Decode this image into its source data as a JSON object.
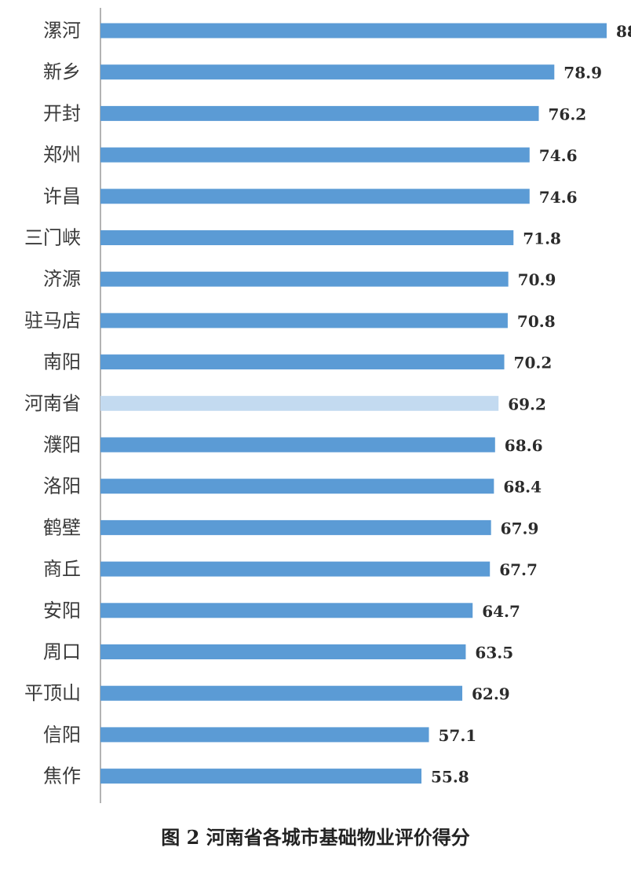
{
  "chart_data": {
    "type": "bar",
    "orientation": "horizontal",
    "categories": [
      "漯河",
      "新乡",
      "开封",
      "郑州",
      "许昌",
      "三门峡",
      "济源",
      "驻马店",
      "南阳",
      "河南省",
      "濮阳",
      "洛阳",
      "鹤壁",
      "商丘",
      "安阳",
      "周口",
      "平顶山",
      "信阳",
      "焦作"
    ],
    "values": [
      88,
      78.9,
      76.2,
      74.6,
      74.6,
      71.8,
      70.9,
      70.8,
      70.2,
      69.2,
      68.6,
      68.4,
      67.9,
      67.7,
      64.7,
      63.5,
      62.9,
      57.1,
      55.8
    ],
    "value_labels": [
      "88",
      "78.9",
      "76.2",
      "74.6",
      "74.6",
      "71.8",
      "70.9",
      "70.8",
      "70.2",
      "69.2",
      "68.6",
      "68.4",
      "67.9",
      "67.7",
      "64.7",
      "63.5",
      "62.9",
      "57.1",
      "55.8"
    ],
    "highlight_category": "河南省",
    "title": "",
    "xlabel": "",
    "ylabel": "",
    "xlim": [
      0,
      88
    ],
    "grid": false,
    "legend": "none",
    "colors": {
      "bar": "#5b9bd5",
      "highlight": "#c3daf0",
      "axis": "#9a9a9a"
    }
  },
  "caption": "图 2 河南省各城市基础物业评价得分"
}
